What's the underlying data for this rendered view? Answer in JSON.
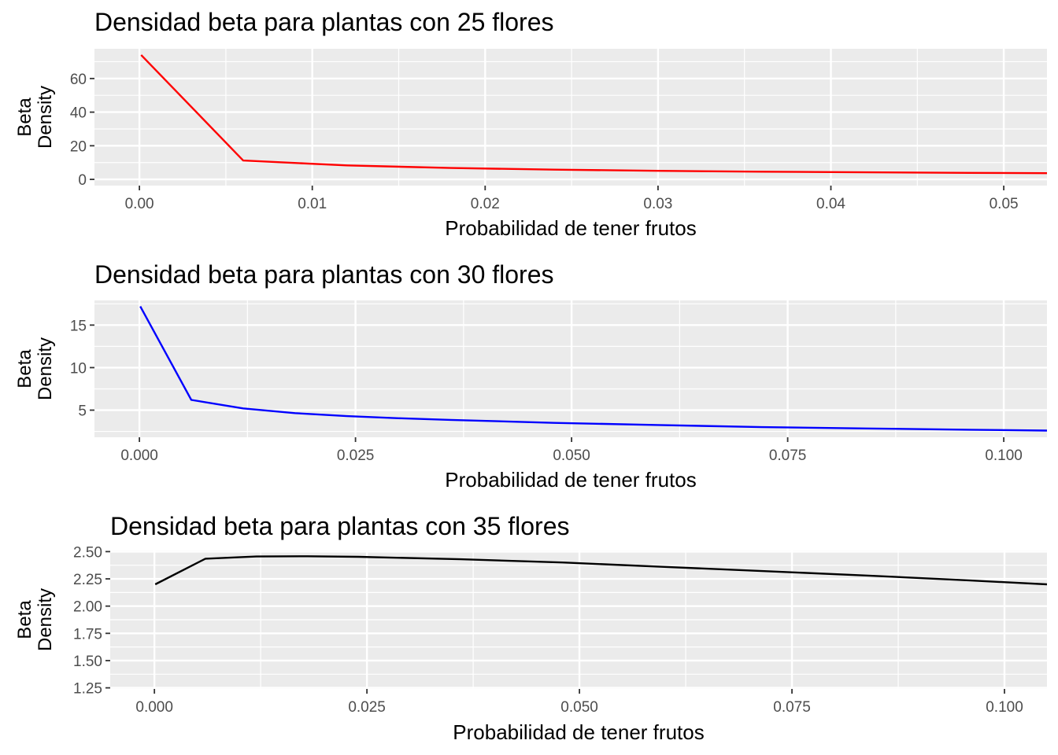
{
  "chart_data": [
    {
      "type": "line",
      "title": "Densidad beta para plantas con 25 flores",
      "xlabel": "Probabilidad de tener frutos",
      "ylabel": [
        "Beta",
        "Density"
      ],
      "xlim": [
        -0.0026,
        0.0525
      ],
      "ylim": [
        -3.7,
        77.7
      ],
      "x_ticks": [
        0,
        0.01,
        0.02,
        0.03,
        0.04,
        0.05
      ],
      "x_tick_labels": [
        "0.00",
        "0.01",
        "0.02",
        "0.03",
        "0.04",
        "0.05"
      ],
      "y_ticks": [
        0,
        20,
        40,
        60
      ],
      "y_tick_labels": [
        "0",
        "20",
        "40",
        "60"
      ],
      "grid": true,
      "series": [
        {
          "color": "#ff0000",
          "x": [
            0.0001,
            0.006,
            0.012,
            0.018,
            0.024,
            0.03,
            0.036,
            0.042,
            0.048,
            0.0525
          ],
          "y": [
            74.0,
            11.2,
            8.3,
            6.8,
            5.8,
            5.1,
            4.6,
            4.2,
            3.9,
            3.7
          ]
        }
      ]
    },
    {
      "type": "line",
      "title": "Densidad beta para plantas con 30 flores",
      "xlabel": "Probabilidad de tener frutos",
      "ylabel": [
        "Beta",
        "Density"
      ],
      "xlim": [
        -0.0052,
        0.105
      ],
      "ylim": [
        1.81,
        17.9
      ],
      "x_ticks": [
        0,
        0.025,
        0.05,
        0.075,
        0.1
      ],
      "x_tick_labels": [
        "0.000",
        "0.025",
        "0.050",
        "0.075",
        "0.100"
      ],
      "y_ticks": [
        5,
        10,
        15
      ],
      "y_tick_labels": [
        "5",
        "10",
        "15"
      ],
      "grid": true,
      "series": [
        {
          "color": "#0000ff",
          "x": [
            0.0001,
            0.006,
            0.012,
            0.018,
            0.024,
            0.03,
            0.036,
            0.048,
            0.06,
            0.072,
            0.084,
            0.096,
            0.105
          ],
          "y": [
            17.2,
            6.2,
            5.2,
            4.65,
            4.3,
            4.05,
            3.85,
            3.5,
            3.25,
            3.0,
            2.85,
            2.7,
            2.6
          ]
        }
      ]
    },
    {
      "type": "line",
      "title": "Densidad beta para plantas con 35 flores",
      "xlabel": "Probabilidad de tener frutos",
      "ylabel": [
        "Beta",
        "Density"
      ],
      "xlim": [
        -0.0052,
        0.105
      ],
      "ylim": [
        1.24,
        2.51
      ],
      "x_ticks": [
        0,
        0.025,
        0.05,
        0.075,
        0.1
      ],
      "x_tick_labels": [
        "0.000",
        "0.025",
        "0.050",
        "0.075",
        "0.100"
      ],
      "y_ticks": [
        1.25,
        1.5,
        1.75,
        2.0,
        2.25,
        2.5
      ],
      "y_tick_labels": [
        "1.25",
        "1.50",
        "1.75",
        "2.00",
        "2.25",
        "2.50"
      ],
      "grid": true,
      "series": [
        {
          "color": "#000000",
          "x": [
            0.0001,
            0.006,
            0.012,
            0.018,
            0.024,
            0.036,
            0.048,
            0.06,
            0.072,
            0.084,
            0.096,
            0.105
          ],
          "y": [
            2.2,
            2.435,
            2.455,
            2.457,
            2.452,
            2.43,
            2.4,
            2.36,
            2.32,
            2.28,
            2.235,
            2.2
          ]
        }
      ]
    }
  ]
}
